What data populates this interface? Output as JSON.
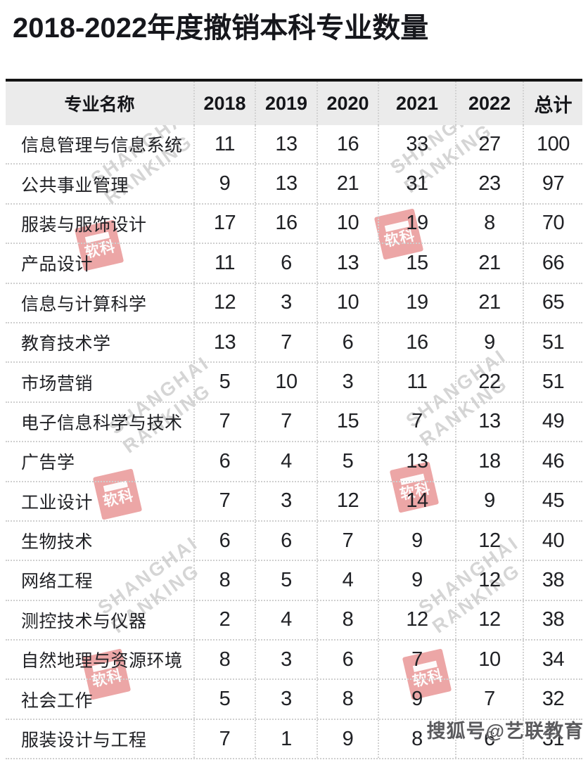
{
  "title": "2018-2022年度撤销本科专业数量",
  "chart_data": {
    "type": "table",
    "title": "2018-2022年度撤销本科专业数量",
    "columns": [
      "专业名称",
      "2018",
      "2019",
      "2020",
      "2021",
      "2022",
      "总计"
    ],
    "rows": [
      {
        "name": "信息管理与信息系统",
        "values": [
          11,
          13,
          16,
          33,
          27,
          100
        ]
      },
      {
        "name": "公共事业管理",
        "values": [
          9,
          13,
          21,
          31,
          23,
          97
        ]
      },
      {
        "name": "服装与服饰设计",
        "values": [
          17,
          16,
          10,
          19,
          8,
          70
        ]
      },
      {
        "name": "产品设计",
        "values": [
          11,
          6,
          13,
          15,
          21,
          66
        ]
      },
      {
        "name": "信息与计算科学",
        "values": [
          12,
          3,
          10,
          19,
          21,
          65
        ]
      },
      {
        "name": "教育技术学",
        "values": [
          13,
          7,
          6,
          16,
          9,
          51
        ]
      },
      {
        "name": "市场营销",
        "values": [
          5,
          10,
          3,
          11,
          22,
          51
        ]
      },
      {
        "name": "电子信息科学与技术",
        "values": [
          7,
          7,
          15,
          7,
          13,
          49
        ]
      },
      {
        "name": "广告学",
        "values": [
          6,
          4,
          5,
          13,
          18,
          46
        ]
      },
      {
        "name": "工业设计",
        "values": [
          7,
          3,
          12,
          14,
          9,
          45
        ]
      },
      {
        "name": "生物技术",
        "values": [
          6,
          6,
          7,
          9,
          12,
          40
        ]
      },
      {
        "name": "网络工程",
        "values": [
          8,
          5,
          4,
          9,
          12,
          38
        ]
      },
      {
        "name": "测控技术与仪器",
        "values": [
          2,
          4,
          8,
          12,
          12,
          38
        ]
      },
      {
        "name": "自然地理与资源环境",
        "values": [
          8,
          3,
          6,
          7,
          10,
          34
        ]
      },
      {
        "name": "社会工作",
        "values": [
          5,
          3,
          8,
          9,
          7,
          32
        ]
      },
      {
        "name": "服装设计与工程",
        "values": [
          7,
          1,
          9,
          8,
          6,
          31
        ]
      }
    ]
  },
  "watermark": {
    "logo_text": "软科",
    "brand_line1": "SHANGHAI",
    "brand_line2": "RANKING",
    "sohu": "搜狐号@艺联教育"
  },
  "colors": {
    "title_color": "#16171c",
    "header_bg": "#ebebeb",
    "top_rule": "#141414",
    "dotted_line": "#d2d2d2",
    "watermark_red": "#dd5c5c"
  }
}
